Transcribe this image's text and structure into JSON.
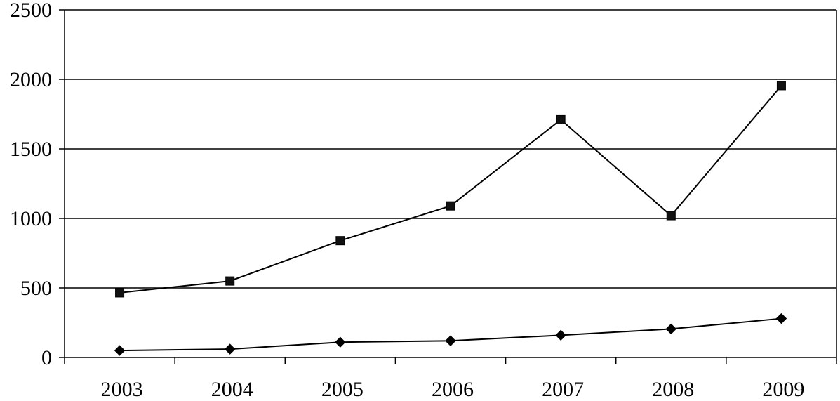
{
  "chart_data": {
    "type": "line",
    "title": "",
    "xlabel": "",
    "ylabel": "",
    "categories": [
      "2003",
      "2004",
      "2005",
      "2006",
      "2007",
      "2008",
      "2009"
    ],
    "ylim": [
      0,
      2500
    ],
    "yticks": [
      0,
      500,
      1000,
      1500,
      2000,
      2500
    ],
    "ytick_labels": [
      "0",
      "500",
      "1000",
      "1500",
      "2000",
      "2500"
    ],
    "grid": true,
    "legend": "none",
    "series": [
      {
        "marker": "square",
        "color": "#000000",
        "values": [
          465,
          550,
          840,
          1090,
          1710,
          1020,
          1955
        ]
      },
      {
        "marker": "diamond",
        "color": "#000000",
        "values": [
          50,
          60,
          110,
          120,
          160,
          205,
          280
        ]
      }
    ]
  }
}
